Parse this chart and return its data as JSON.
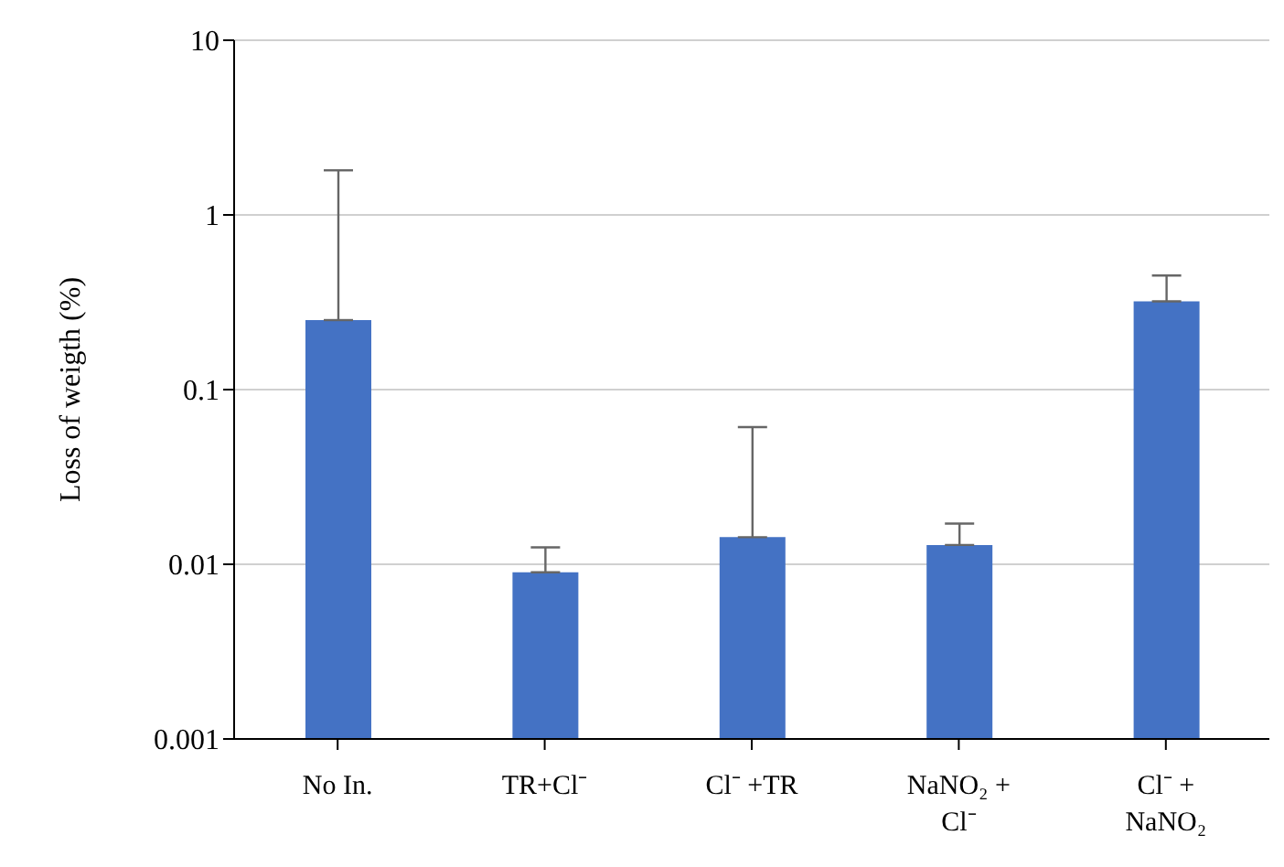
{
  "chart_data": {
    "type": "bar",
    "ylabel": "Loss of weigth (%)",
    "categories": [
      "No In.",
      "TR+Cl⁻",
      "Cl⁻ +TR",
      "NaNO₂ + Cl⁻",
      "Cl⁻ + NaNO₂"
    ],
    "values": [
      0.25,
      0.009,
      0.0143,
      0.0129,
      0.32
    ],
    "errors": [
      [
        0.25,
        1.8
      ],
      [
        0.009,
        0.0125
      ],
      [
        0.0143,
        0.061
      ],
      [
        0.0129,
        0.0171
      ],
      [
        0.32,
        0.45
      ]
    ],
    "color": "#4472c4",
    "log": true,
    "ylim": [
      0.001,
      10
    ],
    "yticks": [
      0.001,
      0.01,
      0.1,
      1,
      10
    ],
    "grid": "y"
  }
}
